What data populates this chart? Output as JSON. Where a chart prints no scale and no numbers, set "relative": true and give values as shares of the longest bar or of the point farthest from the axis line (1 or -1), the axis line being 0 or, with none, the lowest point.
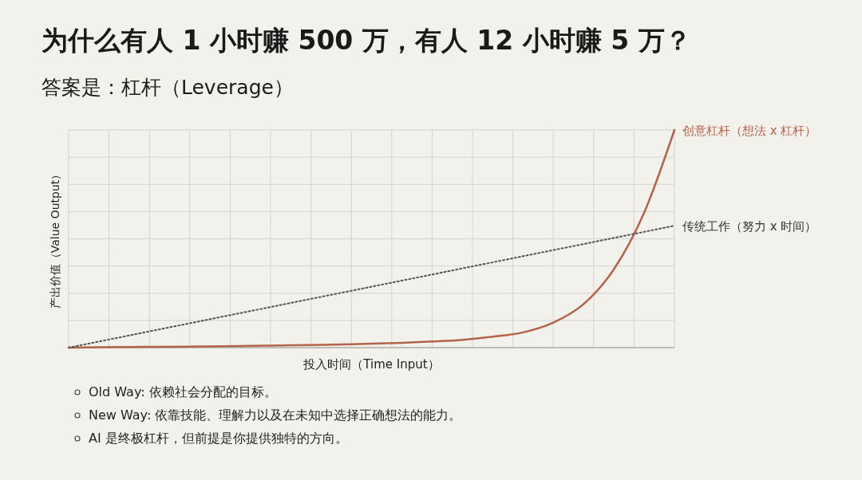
{
  "chart_data": {
    "type": "line",
    "title": "为什么有人 1 小时赚 500 万，有人 12 小时赚 5 万？",
    "subtitle": "答案是：杠杆（Leverage）",
    "xlabel": "投入时间（Time Input）",
    "ylabel": "产出价值（Value Output）",
    "relative": true,
    "grid": true,
    "marker": "none",
    "categories": [
      null,
      null,
      null,
      null,
      null,
      null,
      null,
      null,
      null,
      null,
      null,
      null,
      null,
      null,
      null,
      null,
      null,
      null,
      null,
      null,
      null
    ],
    "series": [
      {
        "name": "创意杠杆（想法 x 杠杆）",
        "color": "#b3634a",
        "line_style": "solid",
        "values": [
          0,
          0.002,
          0.003,
          0.004,
          0.005,
          0.006,
          0.008,
          0.01,
          0.012,
          0.015,
          0.018,
          0.022,
          0.028,
          0.036,
          0.05,
          0.07,
          0.115,
          0.2,
          0.36,
          0.62,
          1
        ]
      },
      {
        "name": "传统工作（努力 x 时间）",
        "color": "#555555",
        "line_style": "dotted",
        "values": [
          0,
          0.028,
          0.056,
          0.084,
          0.112,
          0.14,
          0.168,
          0.196,
          0.224,
          0.252,
          0.28,
          0.308,
          0.336,
          0.364,
          0.392,
          0.42,
          0.448,
          0.476,
          0.504,
          0.532,
          0.56
        ]
      }
    ],
    "annotations": [
      "Old Way: 依赖社会分配的目标。",
      "New Way: 依靠技能、理解力以及在未知中选择正确想法的能力。",
      "AI 是终极杠杆，但前提是你提供独特的方向。"
    ]
  }
}
